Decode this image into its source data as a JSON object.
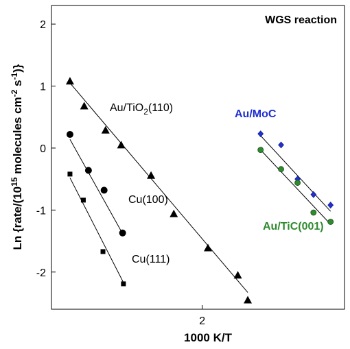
{
  "chart_data": {
    "type": "scatter",
    "title": "WGS reaction",
    "xlabel": "1000 K/T",
    "ylabel_parts": [
      "Ln {rate/(10",
      "15",
      " molecules cm",
      "-2",
      " s",
      "-1",
      ")}"
    ],
    "xlim": [
      1.47,
      2.5
    ],
    "ylim": [
      -2.6,
      2.3
    ],
    "xticks": [
      {
        "value": 2,
        "label": "2"
      }
    ],
    "yticks": [
      {
        "value": 2,
        "label": "2"
      },
      {
        "value": 1,
        "label": "1"
      },
      {
        "value": 0,
        "label": "0"
      },
      {
        "value": -1,
        "label": "-1"
      },
      {
        "value": -2,
        "label": "-2"
      }
    ],
    "grid": false,
    "series": [
      {
        "name": "Au/TiO2(110)",
        "label_parts": [
          "Au/TiO",
          "2",
          "(110)"
        ],
        "marker": "triangle",
        "color": "#000000",
        "x": [
          1.535,
          1.585,
          1.66,
          1.715,
          1.82,
          1.9,
          2.02,
          2.125,
          2.16
        ],
        "y": [
          1.08,
          0.68,
          0.29,
          0.05,
          -0.44,
          -1.06,
          -1.61,
          -2.05,
          -2.45
        ],
        "fit": [
          [
            1.535,
            1.05
          ],
          [
            2.16,
            -2.33
          ]
        ]
      },
      {
        "name": "Cu(100)",
        "label_parts": [
          "Cu(100)"
        ],
        "marker": "circle",
        "color": "#000000",
        "x": [
          1.535,
          1.6,
          1.655,
          1.72
        ],
        "y": [
          0.22,
          -0.36,
          -0.68,
          -1.37
        ],
        "fit": [
          [
            1.535,
            0.14
          ],
          [
            1.72,
            -1.38
          ]
        ]
      },
      {
        "name": "Cu(111)",
        "label_parts": [
          "Cu(111)"
        ],
        "marker": "square",
        "color": "#000000",
        "x": [
          1.535,
          1.582,
          1.651,
          1.723
        ],
        "y": [
          -0.42,
          -0.84,
          -1.67,
          -2.19
        ],
        "fit": [
          [
            1.535,
            -0.48
          ],
          [
            1.723,
            -2.17
          ]
        ]
      },
      {
        "name": "Au/MoC",
        "label_parts": [
          "Au/MoC"
        ],
        "marker": "diamond",
        "color": "#1f2fd0",
        "x": [
          2.205,
          2.277,
          2.335,
          2.391,
          2.451
        ],
        "y": [
          0.23,
          0.05,
          -0.5,
          -0.75,
          -0.92
        ],
        "fit": [
          [
            2.205,
            0.2
          ],
          [
            2.451,
            -1.02
          ]
        ]
      },
      {
        "name": "Au/TiC(001)",
        "label_parts": [
          "Au/TiC(001)"
        ],
        "marker": "circle",
        "color": "#2e8b2e",
        "x": [
          2.205,
          2.277,
          2.335,
          2.391,
          2.451
        ],
        "y": [
          -0.03,
          -0.34,
          -0.56,
          -1.04,
          -1.19
        ],
        "fit": [
          [
            2.205,
            -0.03
          ],
          [
            2.451,
            -1.23
          ]
        ]
      }
    ]
  }
}
